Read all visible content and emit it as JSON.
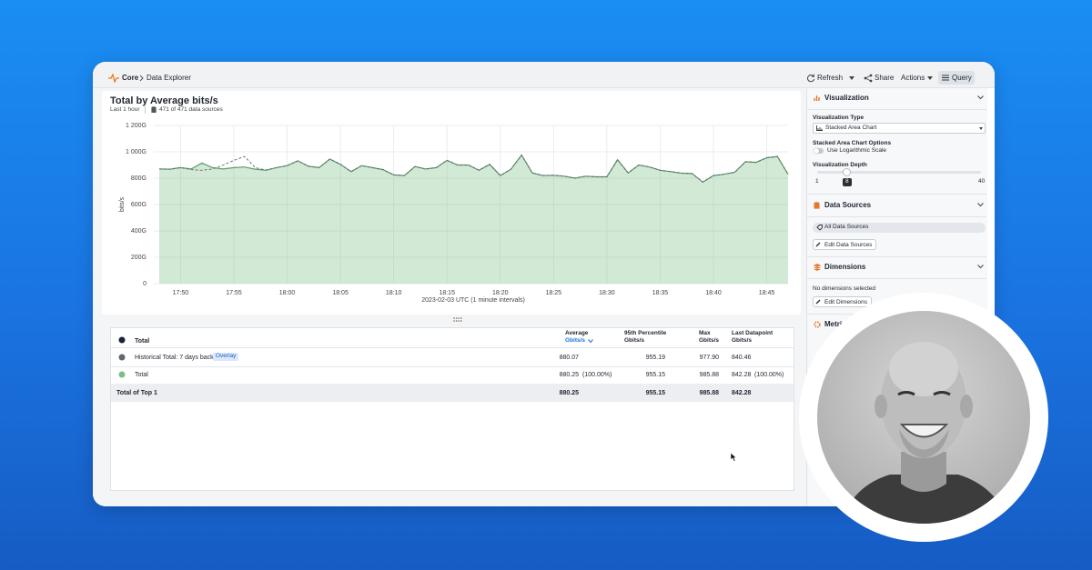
{
  "header": {
    "product": "Core",
    "page": "Data Explorer",
    "refresh": "Refresh",
    "share": "Share",
    "actions": "Actions",
    "query": "Query"
  },
  "chart_card": {
    "title": "Total by Average bits/s",
    "range": "Last 1 hour",
    "sources": "471 of 471 data sources"
  },
  "chart_data": {
    "type": "area",
    "x": [
      "17:48",
      "17:49",
      "17:50",
      "17:51",
      "17:52",
      "17:53",
      "17:54",
      "17:55",
      "17:56",
      "17:57",
      "17:58",
      "17:59",
      "18:00",
      "18:01",
      "18:02",
      "18:03",
      "18:04",
      "18:05",
      "18:06",
      "18:07",
      "18:08",
      "18:09",
      "18:10",
      "18:11",
      "18:12",
      "18:13",
      "18:14",
      "18:15",
      "18:16",
      "18:17",
      "18:18",
      "18:19",
      "18:20",
      "18:21",
      "18:22",
      "18:23",
      "18:24",
      "18:25",
      "18:26",
      "18:27",
      "18:28",
      "18:29",
      "18:30",
      "18:31",
      "18:32",
      "18:33",
      "18:34",
      "18:35",
      "18:36",
      "18:37",
      "18:38",
      "18:39",
      "18:40",
      "18:41",
      "18:42",
      "18:43",
      "18:44",
      "18:45",
      "18:46",
      "18:47"
    ],
    "xticks": [
      "17:50",
      "17:55",
      "18:00",
      "18:05",
      "18:10",
      "18:15",
      "18:20",
      "18:25",
      "18:30",
      "18:35",
      "18:40",
      "18:45"
    ],
    "xlabel": "2023-02-03 UTC (1 minute intervals)",
    "ylabel": "bits/s",
    "ylim": [
      0,
      1200
    ],
    "yticks": [
      0,
      {
        "value": 200,
        "label": "200G"
      },
      {
        "value": 400,
        "label": "400G"
      },
      {
        "value": 600,
        "label": "600G"
      },
      {
        "value": 800,
        "label": "800G"
      },
      {
        "value": 1000,
        "label": "1 000G"
      },
      {
        "value": 1200,
        "label": "1 200G"
      }
    ],
    "grid": true,
    "series": [
      {
        "name": "Historical Total: 7 days back",
        "color": "#5f6773",
        "dash": true,
        "values": [
          870,
          868,
          880,
          865,
          860,
          870,
          900,
          935,
          965,
          880,
          862,
          880,
          895,
          932,
          890,
          880,
          945,
          905,
          850,
          895,
          880,
          865,
          825,
          820,
          888,
          870,
          880,
          935,
          900,
          900,
          860,
          905,
          820,
          868,
          975,
          840,
          820,
          822,
          815,
          800,
          815,
          810,
          810,
          940,
          840,
          900,
          885,
          860,
          850,
          838,
          835,
          770,
          820,
          830,
          845,
          925,
          920,
          955,
          965,
          830
        ]
      },
      {
        "name": "Total",
        "color": "#7cbf86",
        "dash": false,
        "values": [
          870,
          868,
          880,
          870,
          915,
          880,
          870,
          880,
          885,
          868,
          860,
          880,
          895,
          932,
          890,
          880,
          945,
          905,
          850,
          895,
          880,
          865,
          825,
          820,
          888,
          870,
          880,
          935,
          900,
          900,
          860,
          905,
          820,
          868,
          975,
          840,
          820,
          822,
          815,
          800,
          815,
          810,
          810,
          940,
          840,
          900,
          885,
          860,
          850,
          838,
          835,
          770,
          820,
          830,
          845,
          925,
          920,
          955,
          965,
          830
        ]
      }
    ]
  },
  "table": {
    "header": "Total",
    "columns": [
      {
        "title": "Average",
        "unit": "Gbits/s"
      },
      {
        "title": "95th Percentile",
        "unit": "Gbits/s"
      },
      {
        "title": "Max",
        "unit": "Gbits/s"
      },
      {
        "title": "Last Datapoint",
        "unit": "Gbits/s"
      }
    ],
    "rows": [
      {
        "badge": "Overlay",
        "cells": [
          "880.07",
          "955.19",
          "977.90",
          "840.46"
        ]
      },
      {
        "cells": [
          "880.25",
          "955.15",
          "985.88",
          "842.28"
        ],
        "average_share": "(100.00%)",
        "last_share": "(100.00%)"
      }
    ],
    "total_row": {
      "name": "Total of Top 1",
      "cells": [
        "880.25",
        "955.15",
        "985.88",
        "842.28"
      ]
    }
  },
  "sidebar": {
    "visualization": {
      "title": "Visualization",
      "type_label": "Visualization Type",
      "type": "Stacked Area Chart",
      "options_label": "Stacked Area Chart Options",
      "log_scale": "Use Logarithmic Scale",
      "depth_label": "Visualization Depth",
      "depth_min": 1,
      "depth": 8,
      "depth_max": 40
    },
    "data_sources": {
      "title": "Data Sources",
      "selected": "All Data Sources",
      "edit": "Edit Data Sources"
    },
    "dimensions": {
      "title": "Dimensions",
      "empty": "No dimensions selected",
      "edit": "Edit Dimensions"
    },
    "metrics": {
      "title": "Metrics"
    }
  }
}
